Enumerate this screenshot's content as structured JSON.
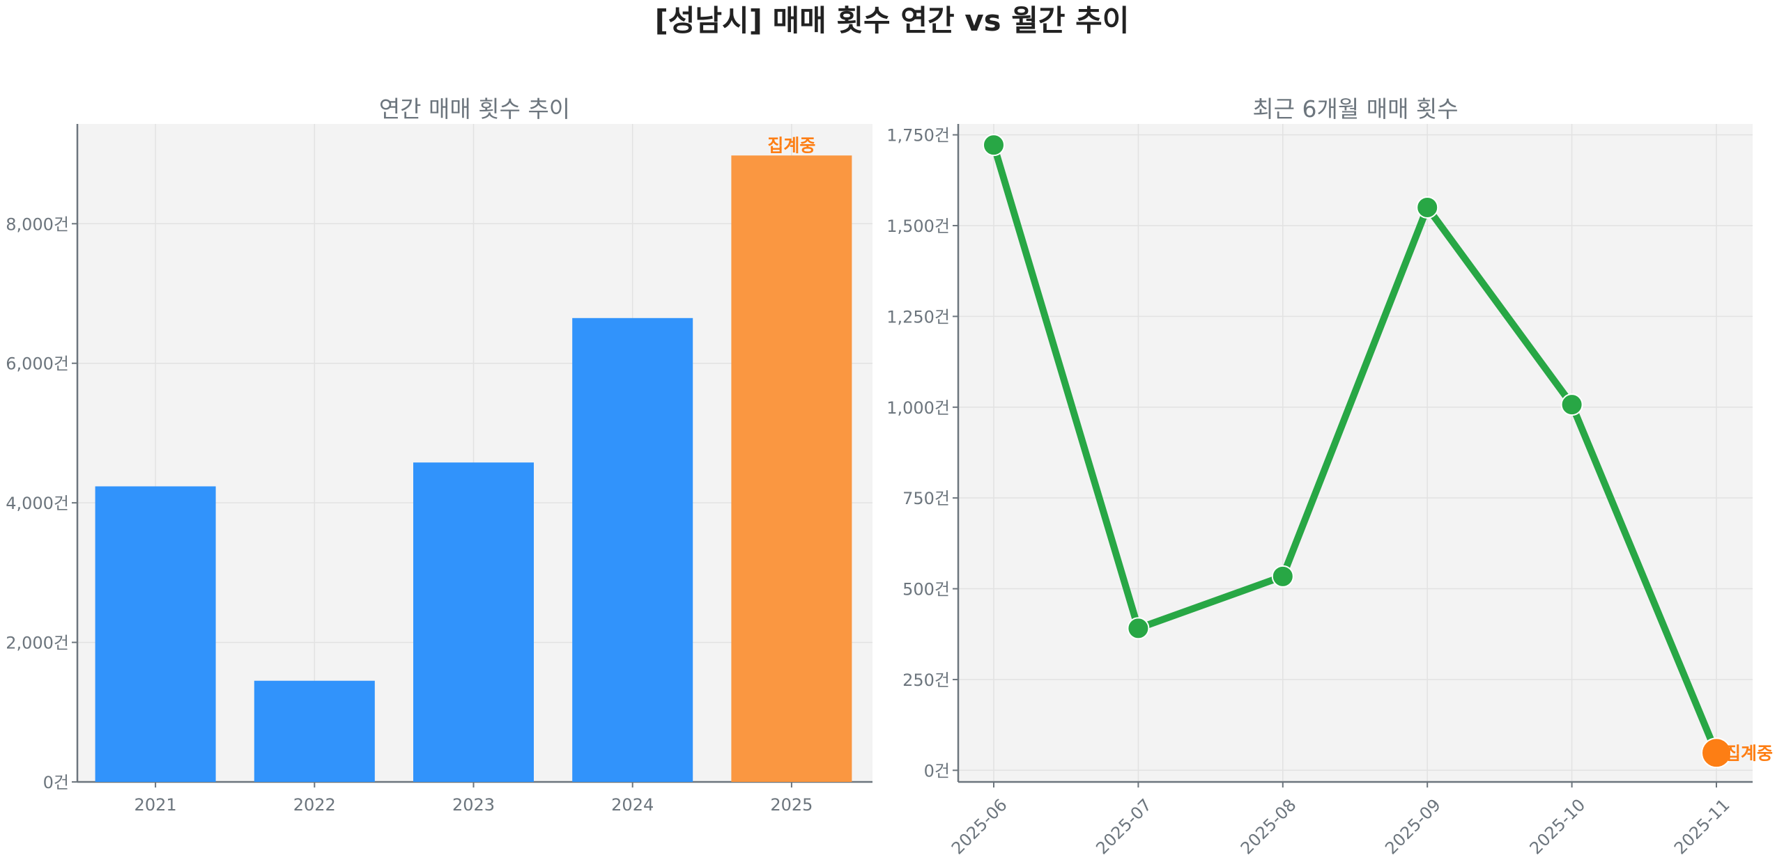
{
  "title": "[성남시] 매매 횟수 연간 vs 월간 추이",
  "colors": {
    "bar": "#3193fb",
    "bar_highlight": "#fa9741",
    "line": "#28a745",
    "highlight_marker": "#fd7e14",
    "annotation": "#fd7e14",
    "plot_bg": "#f3f3f3",
    "text": "#6c757d"
  },
  "chart_data": [
    {
      "type": "bar",
      "title": "연간 매매 횟수 추이",
      "categories": [
        "2021",
        "2022",
        "2023",
        "2024",
        "2025"
      ],
      "values": [
        4236,
        1450,
        4578,
        6648,
        8978
      ],
      "highlight_index": 4,
      "annotation": {
        "category": "2025",
        "text": "집계중"
      },
      "ylim": [
        0,
        9430
      ],
      "yticks": [
        0,
        2000,
        4000,
        6000,
        8000
      ],
      "ytick_labels": [
        "0건",
        "2,000건",
        "4,000건",
        "6,000건",
        "8,000건"
      ],
      "grid": true
    },
    {
      "type": "line",
      "title": "최근 6개월 매매 횟수",
      "categories": [
        "2025-06",
        "2025-07",
        "2025-08",
        "2025-09",
        "2025-10",
        "2025-11"
      ],
      "values": [
        1722,
        391,
        534,
        1550,
        1007,
        48
      ],
      "highlight_index": 5,
      "annotation": {
        "category": "2025-11",
        "text": "집계중"
      },
      "ylim": [
        -32,
        1780
      ],
      "yticks": [
        0,
        250,
        500,
        750,
        1000,
        1250,
        1500,
        1750
      ],
      "ytick_labels": [
        "0건",
        "250건",
        "500건",
        "750건",
        "1,000건",
        "1,250건",
        "1,500건",
        "1,750건"
      ],
      "grid": true
    }
  ]
}
